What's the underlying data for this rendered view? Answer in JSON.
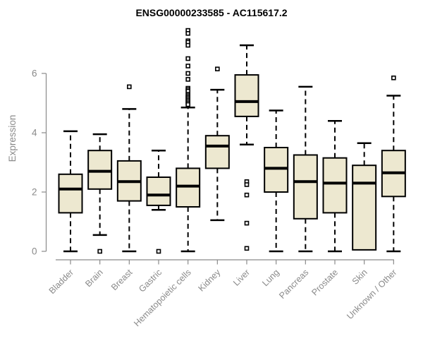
{
  "title": "ENSG00000233585 - AC115617.2",
  "chart_data": {
    "type": "boxplot",
    "title": "ENSG00000233585 - AC115617.2",
    "xlabel": "",
    "ylabel": "Expression",
    "ylim": [
      0,
      6
    ],
    "yticks": [
      0,
      2,
      4,
      6
    ],
    "grid": false,
    "legend": "none",
    "categories": [
      "Bladder",
      "Brain",
      "Breast",
      "Gastric",
      "Hematopoietic cells",
      "Kidney",
      "Liver",
      "Lung",
      "Pancreas",
      "Prostate",
      "Skin",
      "Unknown / Other"
    ],
    "series": [
      {
        "category": "Bladder",
        "whisker_low": 0,
        "q1": 1.3,
        "median": 2.1,
        "q3": 2.6,
        "whisker_high": 4.05,
        "outliers": []
      },
      {
        "category": "Brain",
        "whisker_low": 0.55,
        "q1": 2.1,
        "median": 2.7,
        "q3": 3.4,
        "whisker_high": 3.95,
        "outliers": [
          0
        ]
      },
      {
        "category": "Breast",
        "whisker_low": 0,
        "q1": 1.7,
        "median": 2.35,
        "q3": 3.05,
        "whisker_high": 4.8,
        "outliers": [
          5.55
        ]
      },
      {
        "category": "Gastric",
        "whisker_low": 1.4,
        "q1": 1.55,
        "median": 1.9,
        "q3": 2.5,
        "whisker_high": 3.4,
        "outliers": [
          0
        ]
      },
      {
        "category": "Hematopoietic cells",
        "whisker_low": 0,
        "q1": 1.5,
        "median": 2.2,
        "q3": 2.8,
        "whisker_high": 4.85,
        "outliers": [
          7.45,
          7.35,
          7.1,
          7.05,
          6.95,
          6.5,
          6.25,
          6.0,
          5.8,
          5.5,
          5.45,
          5.4,
          5.3,
          5.25,
          5.2,
          5.15,
          5.1,
          5.05,
          5.0,
          4.95
        ]
      },
      {
        "category": "Kidney",
        "whisker_low": 1.05,
        "q1": 2.8,
        "median": 3.55,
        "q3": 3.9,
        "whisker_high": 5.45,
        "outliers": [
          6.15
        ]
      },
      {
        "category": "Liver",
        "whisker_low": 3.6,
        "q1": 4.55,
        "median": 5.05,
        "q3": 5.95,
        "whisker_high": 6.95,
        "outliers": [
          2.35,
          2.25,
          1.9,
          0.95,
          0.1
        ]
      },
      {
        "category": "Lung",
        "whisker_low": 0,
        "q1": 2.0,
        "median": 2.8,
        "q3": 3.5,
        "whisker_high": 4.75,
        "outliers": []
      },
      {
        "category": "Pancreas",
        "whisker_low": 0,
        "q1": 1.1,
        "median": 2.35,
        "q3": 3.25,
        "whisker_high": 5.55,
        "outliers": []
      },
      {
        "category": "Prostate",
        "whisker_low": 0,
        "q1": 1.3,
        "median": 2.3,
        "q3": 3.15,
        "whisker_high": 4.4,
        "outliers": []
      },
      {
        "category": "Skin",
        "whisker_low": null,
        "q1": 0.05,
        "median": 2.3,
        "q3": 2.9,
        "whisker_high": 3.65,
        "outliers": []
      },
      {
        "category": "Unknown / Other",
        "whisker_low": 0,
        "q1": 1.85,
        "median": 2.65,
        "q3": 3.4,
        "whisker_high": 5.25,
        "outliers": [
          5.85
        ]
      }
    ],
    "colors": {
      "box_fill": "#EDE8D0",
      "box_border": "#000000",
      "median": "#000000",
      "whisker": "#000000",
      "outlier": "#000000",
      "axis": "#8A8A8A",
      "tick_label": "#8A8A8A",
      "title": "#000000"
    }
  }
}
